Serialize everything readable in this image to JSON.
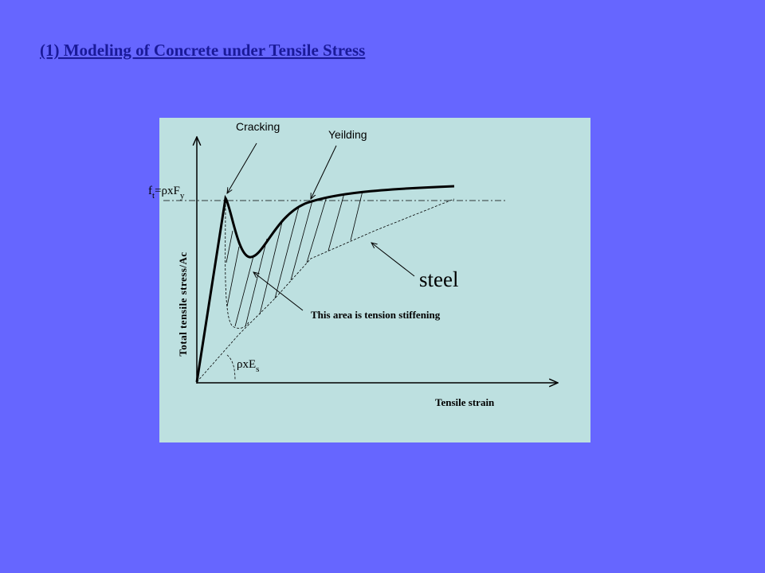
{
  "title": "(1) Modeling of Concrete under Tensile Stress",
  "diagram": {
    "cracking": "Cracking",
    "yielding": "Yeilding",
    "ft_label": [
      "f",
      "t",
      "=ρxF",
      "y"
    ],
    "steel": "steel",
    "area_note": "This area is tension stiffening",
    "slope_label": [
      "ρxE",
      "s"
    ],
    "y_axis_label": "Total tensile stress/Ac",
    "x_axis_label": "Tensile strain"
  }
}
